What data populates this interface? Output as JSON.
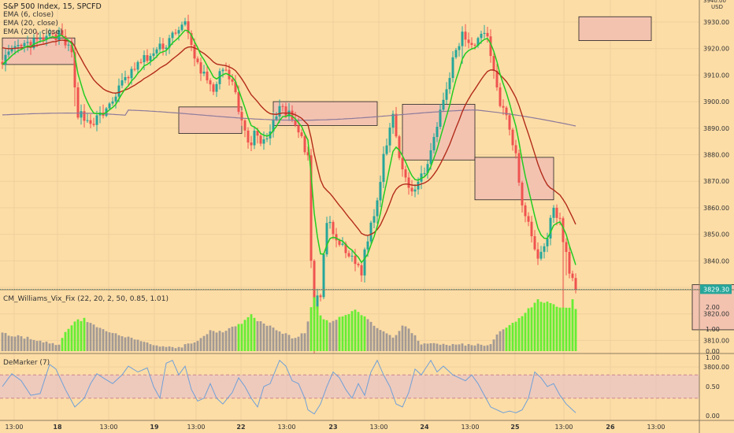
{
  "header": {
    "title": "S&P 500 Index, 15, SPCFD",
    "indicators": [
      "EMA (6, close)",
      "EMA (20, close)",
      "EMA (200, close)"
    ]
  },
  "panes": {
    "williams_vix_label": "CM_Williams_Vix_Fix (22, 20, 2, 50, 0.85, 1.01)",
    "demarker_label": "DeMarker (7)"
  },
  "price_axis": {
    "currency": "USD",
    "ticks": [
      "3930.00",
      "3920.00",
      "3910.00",
      "3900.00",
      "3890.00",
      "3880.00",
      "3870.00",
      "3860.00",
      "3850.00",
      "3840.00",
      "3830.00",
      "3820.00",
      "3810.00",
      "3800.00"
    ],
    "last_price": "3829.30",
    "top_partial": "3940.00"
  },
  "wvf_axis": {
    "ticks": [
      "2.00",
      "1.00",
      "0.00"
    ]
  },
  "dem_axis": {
    "ticks": [
      "1.00",
      "0.50",
      "0.00"
    ]
  },
  "time_axis": {
    "labels": [
      "13:00",
      "18",
      "13:00",
      "19",
      "13:00",
      "22",
      "13:00",
      "23",
      "13:00",
      "24",
      "13:00",
      "25",
      "13:00",
      "26",
      "13:00"
    ]
  },
  "colors": {
    "background": "#FDDDA6",
    "up_candle": "#26A69A",
    "down_candle": "#EF5350",
    "ema6": "#22CC22",
    "ema20": "#B22B1A",
    "ema200": "#8C7A9A",
    "wvf_normal": "#A39A94",
    "wvf_alert": "#66EE33",
    "demarker": "#6FA0D8",
    "zone_fill": "#F3C3B0",
    "band_fill": "#E8C3C3"
  },
  "chart_data": [
    {
      "type": "candlestick",
      "x_unit": "15-minute bars, Feb 17 to Feb 25 session",
      "y_unit": "index points",
      "ylim": [
        3800,
        3940
      ],
      "last_price": 3829.3,
      "ema_lengths": [
        6,
        20,
        200
      ],
      "price_path_anchors": [
        [
          0,
          3916
        ],
        [
          5,
          3920
        ],
        [
          10,
          3922
        ],
        [
          14,
          3924
        ],
        [
          18,
          3925
        ],
        [
          22,
          3918
        ],
        [
          24,
          3896
        ],
        [
          28,
          3892
        ],
        [
          32,
          3895
        ],
        [
          36,
          3903
        ],
        [
          40,
          3910
        ],
        [
          44,
          3915
        ],
        [
          48,
          3918
        ],
        [
          52,
          3922
        ],
        [
          55,
          3927
        ],
        [
          58,
          3929
        ],
        [
          61,
          3916
        ],
        [
          64,
          3910
        ],
        [
          67,
          3905
        ],
        [
          70,
          3912
        ],
        [
          73,
          3906
        ],
        [
          76,
          3894
        ],
        [
          78,
          3883
        ],
        [
          80,
          3888
        ],
        [
          83,
          3884
        ],
        [
          86,
          3893
        ],
        [
          89,
          3898
        ],
        [
          92,
          3893
        ],
        [
          95,
          3885
        ],
        [
          97,
          3878
        ],
        [
          98,
          3840
        ],
        [
          99,
          3822
        ],
        [
          101,
          3828
        ],
        [
          103,
          3855
        ],
        [
          106,
          3848
        ],
        [
          109,
          3843
        ],
        [
          112,
          3840
        ],
        [
          114,
          3836
        ],
        [
          116,
          3849
        ],
        [
          119,
          3862
        ],
        [
          121,
          3880
        ],
        [
          124,
          3896
        ],
        [
          126,
          3880
        ],
        [
          128,
          3872
        ],
        [
          130,
          3866
        ],
        [
          132,
          3868
        ],
        [
          134,
          3875
        ],
        [
          137,
          3885
        ],
        [
          140,
          3900
        ],
        [
          143,
          3915
        ],
        [
          146,
          3925
        ],
        [
          149,
          3922
        ],
        [
          152,
          3925
        ],
        [
          154,
          3926
        ],
        [
          156,
          3911
        ],
        [
          158,
          3900
        ],
        [
          160,
          3896
        ],
        [
          163,
          3880
        ],
        [
          165,
          3860
        ],
        [
          168,
          3850
        ],
        [
          170,
          3840
        ],
        [
          173,
          3850
        ],
        [
          175,
          3859
        ],
        [
          177,
          3855
        ],
        [
          180,
          3835
        ],
        [
          182,
          3829
        ]
      ],
      "supply_demand_zones": [
        [
          0,
          23,
          3914,
          3924
        ],
        [
          56,
          76,
          3888,
          3898
        ],
        [
          86,
          119,
          3891,
          3900
        ],
        [
          127,
          150,
          3878,
          3899
        ],
        [
          150,
          175,
          3863,
          3879
        ],
        [
          183,
          206,
          3923,
          3932
        ],
        [
          219,
          260,
          3814,
          3831
        ]
      ]
    },
    {
      "type": "bar",
      "name": "CM_Williams_Vix_Fix",
      "ylim": [
        0,
        2.5
      ],
      "alert_threshold": 1.45,
      "value_anchors": [
        [
          0,
          0.8
        ],
        [
          10,
          0.55
        ],
        [
          18,
          0.25
        ],
        [
          20,
          0.9
        ],
        [
          23,
          1.35
        ],
        [
          26,
          1.45
        ],
        [
          28,
          1.3
        ],
        [
          33,
          0.9
        ],
        [
          38,
          0.7
        ],
        [
          46,
          0.35
        ],
        [
          55,
          0.1
        ],
        [
          62,
          0.5
        ],
        [
          66,
          0.9
        ],
        [
          70,
          0.9
        ],
        [
          76,
          1.25
        ],
        [
          79,
          1.65
        ],
        [
          82,
          1.3
        ],
        [
          87,
          1.0
        ],
        [
          92,
          0.6
        ],
        [
          96,
          0.8
        ],
        [
          98,
          2.0
        ],
        [
          99,
          2.5
        ],
        [
          101,
          1.6
        ],
        [
          104,
          1.3
        ],
        [
          108,
          1.6
        ],
        [
          112,
          1.85
        ],
        [
          115,
          1.6
        ],
        [
          119,
          1.0
        ],
        [
          124,
          0.6
        ],
        [
          127,
          1.1
        ],
        [
          129,
          1.05
        ],
        [
          133,
          0.35
        ],
        [
          138,
          0.3
        ],
        [
          143,
          0.3
        ],
        [
          150,
          0.3
        ],
        [
          153,
          0.25
        ],
        [
          155,
          0.3
        ],
        [
          158,
          0.9
        ],
        [
          162,
          1.25
        ],
        [
          166,
          1.75
        ],
        [
          170,
          2.3
        ],
        [
          174,
          2.2
        ],
        [
          177,
          2.0
        ],
        [
          180,
          2.0
        ],
        [
          181,
          2.3
        ],
        [
          182,
          1.9
        ]
      ]
    },
    {
      "type": "line",
      "name": "DeMarker",
      "ylim": [
        0,
        1
      ],
      "bands": [
        0.3,
        0.7
      ],
      "value_anchors": [
        [
          0,
          0.5
        ],
        [
          3,
          0.72
        ],
        [
          6,
          0.6
        ],
        [
          9,
          0.35
        ],
        [
          12,
          0.38
        ],
        [
          15,
          0.88
        ],
        [
          17,
          0.8
        ],
        [
          20,
          0.45
        ],
        [
          23,
          0.15
        ],
        [
          26,
          0.3
        ],
        [
          28,
          0.55
        ],
        [
          30,
          0.72
        ],
        [
          32,
          0.65
        ],
        [
          35,
          0.55
        ],
        [
          38,
          0.7
        ],
        [
          40,
          0.85
        ],
        [
          43,
          0.75
        ],
        [
          46,
          0.82
        ],
        [
          48,
          0.5
        ],
        [
          50,
          0.3
        ],
        [
          52,
          0.9
        ],
        [
          54,
          0.95
        ],
        [
          56,
          0.7
        ],
        [
          58,
          0.85
        ],
        [
          60,
          0.45
        ],
        [
          62,
          0.25
        ],
        [
          64,
          0.3
        ],
        [
          66,
          0.55
        ],
        [
          68,
          0.3
        ],
        [
          70,
          0.2
        ],
        [
          73,
          0.4
        ],
        [
          75,
          0.65
        ],
        [
          77,
          0.5
        ],
        [
          79,
          0.3
        ],
        [
          81,
          0.15
        ],
        [
          83,
          0.5
        ],
        [
          85,
          0.55
        ],
        [
          88,
          0.95
        ],
        [
          90,
          0.85
        ],
        [
          92,
          0.6
        ],
        [
          94,
          0.55
        ],
        [
          96,
          0.3
        ],
        [
          97,
          0.1
        ],
        [
          99,
          0.03
        ],
        [
          101,
          0.2
        ],
        [
          103,
          0.5
        ],
        [
          105,
          0.75
        ],
        [
          107,
          0.65
        ],
        [
          109,
          0.45
        ],
        [
          111,
          0.3
        ],
        [
          113,
          0.55
        ],
        [
          115,
          0.35
        ],
        [
          117,
          0.75
        ],
        [
          119,
          0.95
        ],
        [
          121,
          0.7
        ],
        [
          123,
          0.5
        ],
        [
          125,
          0.2
        ],
        [
          127,
          0.15
        ],
        [
          129,
          0.4
        ],
        [
          131,
          0.8
        ],
        [
          133,
          0.7
        ],
        [
          136,
          0.95
        ],
        [
          138,
          0.75
        ],
        [
          140,
          0.85
        ],
        [
          143,
          0.7
        ],
        [
          145,
          0.65
        ],
        [
          147,
          0.6
        ],
        [
          149,
          0.7
        ],
        [
          151,
          0.55
        ],
        [
          153,
          0.35
        ],
        [
          155,
          0.15
        ],
        [
          157,
          0.1
        ],
        [
          159,
          0.05
        ],
        [
          161,
          0.08
        ],
        [
          163,
          0.05
        ],
        [
          165,
          0.1
        ],
        [
          167,
          0.3
        ],
        [
          169,
          0.75
        ],
        [
          171,
          0.65
        ],
        [
          173,
          0.5
        ],
        [
          175,
          0.55
        ],
        [
          177,
          0.35
        ],
        [
          179,
          0.2
        ],
        [
          181,
          0.1
        ],
        [
          182,
          0.05
        ]
      ]
    }
  ]
}
